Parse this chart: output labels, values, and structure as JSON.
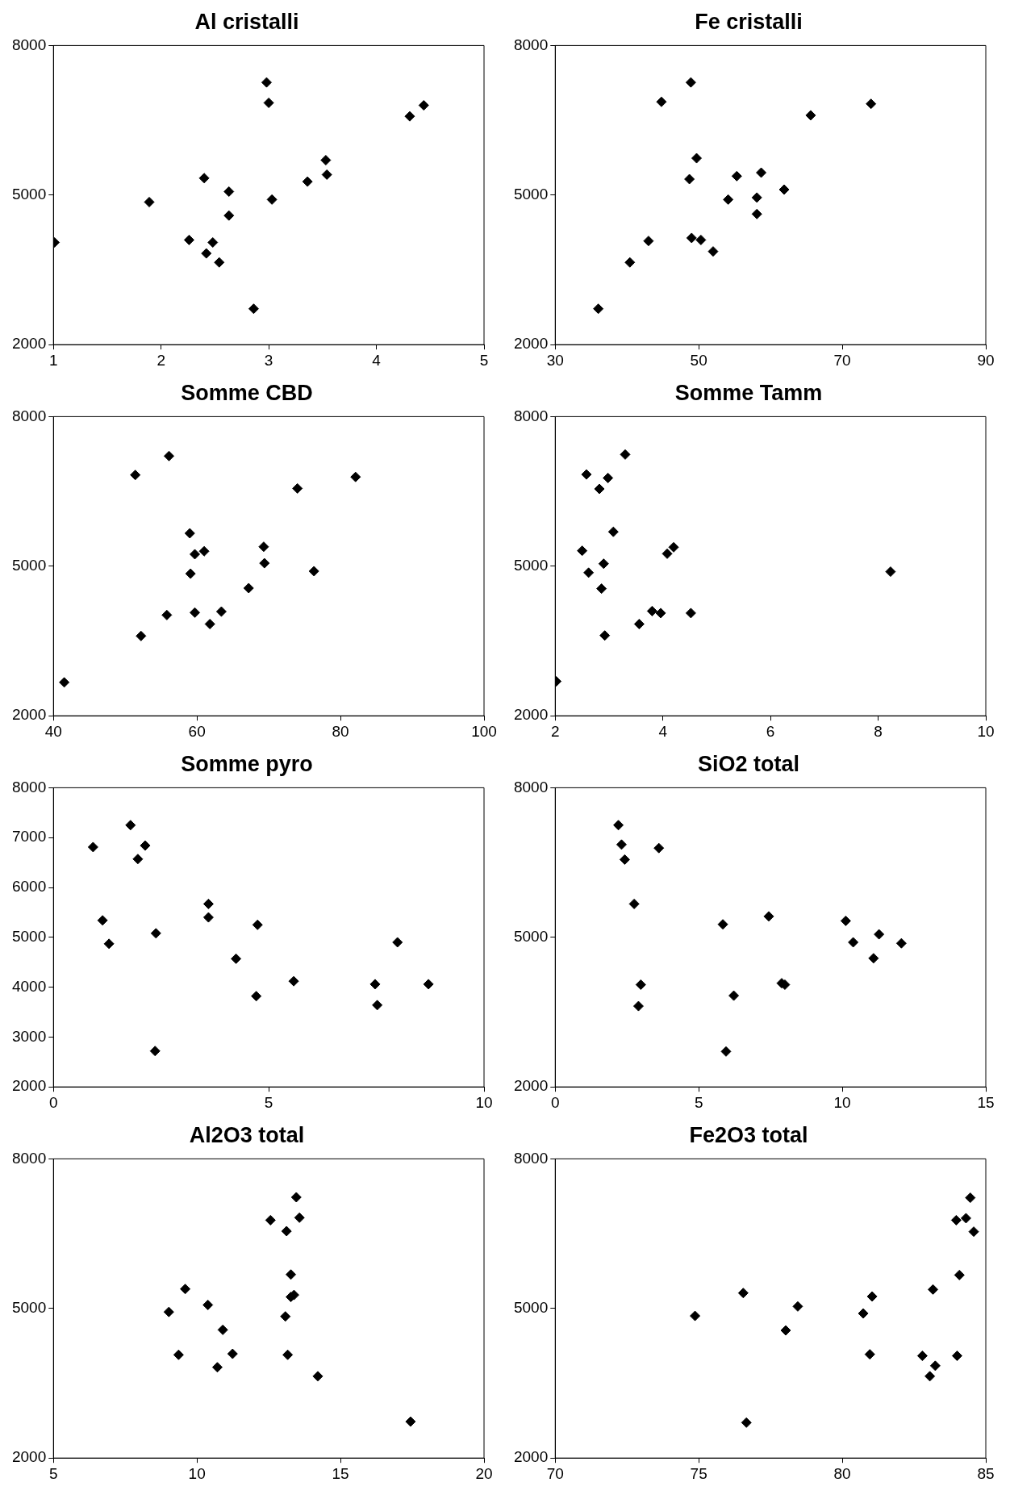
{
  "chart_data": [
    {
      "type": "scatter",
      "title": "Al cristalli",
      "color": "#000000",
      "marker": "diamond",
      "xlim": [
        1,
        5
      ],
      "xticks": [
        1,
        2,
        3,
        4,
        5
      ],
      "ylim": [
        2000,
        8000
      ],
      "yticks": [
        2000,
        5000,
        8000
      ],
      "x": [
        1.01,
        1.89,
        2.26,
        2.4,
        2.42,
        2.48,
        2.54,
        2.63,
        2.63,
        2.86,
        2.98,
        3.0,
        3.03,
        3.36,
        3.53,
        3.54,
        4.31,
        4.44
      ],
      "values": [
        4050,
        4860,
        4100,
        5340,
        3830,
        4050,
        3650,
        5070,
        4590,
        2720,
        7260,
        6850,
        4910,
        5270,
        5700,
        5410,
        6580,
        6800
      ]
    },
    {
      "type": "scatter",
      "title": "Fe cristalli",
      "color": "#000000",
      "marker": "diamond",
      "xlim": [
        30,
        90
      ],
      "xticks": [
        30,
        50,
        70,
        90
      ],
      "ylim": [
        2000,
        8000
      ],
      "yticks": [
        2000,
        5000,
        8000
      ],
      "x": [
        36,
        40.4,
        43,
        44.8,
        48.9,
        48.7,
        49.7,
        49,
        50.3,
        52,
        54.1,
        55.3,
        58.1,
        58.1,
        58.7,
        61.9,
        65.6,
        74
      ],
      "values": [
        2720,
        3650,
        4080,
        6870,
        7260,
        5320,
        5740,
        4140,
        4100,
        3870,
        4910,
        5380,
        4950,
        4620,
        5450,
        5110,
        6600,
        6830
      ]
    },
    {
      "type": "scatter",
      "title": "Somme CBD",
      "color": "#000000",
      "marker": "diamond",
      "xlim": [
        40,
        100
      ],
      "xticks": [
        40,
        60,
        80,
        100
      ],
      "ylim": [
        2000,
        8000
      ],
      "yticks": [
        2000,
        5000,
        8000
      ],
      "x": [
        41.5,
        51.4,
        52.2,
        55.8,
        56.1,
        59,
        59.1,
        59.7,
        59.7,
        61,
        61.8,
        63.4,
        67.2,
        69.3,
        69.4,
        74,
        76.3,
        82.1
      ],
      "values": [
        2670,
        6830,
        3600,
        4020,
        7210,
        5660,
        4850,
        5240,
        4070,
        5300,
        3840,
        4090,
        4560,
        5390,
        5060,
        6560,
        4900,
        6790
      ]
    },
    {
      "type": "scatter",
      "title": "Somme Tamm",
      "color": "#000000",
      "marker": "diamond",
      "xlim": [
        2,
        10
      ],
      "xticks": [
        2,
        4,
        6,
        8,
        10
      ],
      "ylim": [
        2000,
        8000
      ],
      "yticks": [
        2000,
        5000,
        8000
      ],
      "x": [
        2.02,
        2.5,
        2.58,
        2.62,
        2.82,
        2.86,
        2.9,
        2.92,
        2.98,
        3.08,
        3.3,
        3.56,
        3.8,
        3.96,
        4.08,
        4.2,
        4.52,
        8.23
      ],
      "values": [
        2690,
        5310,
        6840,
        4870,
        6550,
        4550,
        5050,
        3610,
        6770,
        5690,
        7240,
        3840,
        4100,
        4060,
        5250,
        5380,
        4060,
        4890
      ]
    },
    {
      "type": "scatter",
      "title": "Somme pyro",
      "color": "#000000",
      "marker": "diamond",
      "xlim": [
        0,
        10
      ],
      "xticks": [
        0,
        5,
        10
      ],
      "ylim": [
        2000,
        8000
      ],
      "yticks": [
        2000,
        3000,
        4000,
        5000,
        6000,
        7000,
        8000
      ],
      "x": [
        0.92,
        1.14,
        1.29,
        1.79,
        1.96,
        2.13,
        2.36,
        2.38,
        3.6,
        3.6,
        4.24,
        4.74,
        4.71,
        5.58,
        7.47,
        7.52,
        7.99,
        8.71
      ],
      "values": [
        6810,
        5340,
        4870,
        7250,
        6570,
        6840,
        2720,
        5080,
        5670,
        5400,
        4570,
        5250,
        3820,
        4120,
        4060,
        3640,
        4900,
        4060
      ]
    },
    {
      "type": "scatter",
      "title": "SiO2 total",
      "color": "#000000",
      "marker": "diamond",
      "xlim": [
        0,
        15
      ],
      "xticks": [
        0,
        5,
        10,
        15
      ],
      "ylim": [
        2000,
        8000
      ],
      "yticks": [
        2000,
        5000,
        8000
      ],
      "x": [
        2.2,
        2.31,
        2.42,
        2.75,
        2.98,
        2.9,
        3.61,
        5.84,
        5.95,
        6.22,
        7.44,
        7.89,
        8.0,
        10.12,
        10.38,
        11.09,
        11.28,
        12.06
      ],
      "values": [
        7250,
        6860,
        6560,
        5670,
        4050,
        3620,
        6790,
        5260,
        2710,
        3830,
        5420,
        4080,
        4050,
        5330,
        4900,
        4580,
        5060,
        4880
      ]
    },
    {
      "type": "scatter",
      "title": "Al2O3 total",
      "color": "#000000",
      "marker": "diamond",
      "xlim": [
        5,
        20
      ],
      "xticks": [
        5,
        10,
        15,
        20
      ],
      "ylim": [
        2000,
        8000
      ],
      "yticks": [
        2000,
        5000,
        8000
      ],
      "x": [
        9.02,
        9.36,
        9.59,
        10.38,
        10.71,
        10.9,
        11.24,
        12.56,
        13.08,
        13.12,
        13.27,
        13.27,
        13.16,
        13.38,
        13.46,
        13.57,
        14.21,
        17.44
      ],
      "values": [
        4930,
        4070,
        5390,
        5070,
        3820,
        4570,
        4090,
        6770,
        4840,
        6550,
        5680,
        5230,
        4070,
        5270,
        7230,
        6820,
        3640,
        2730
      ]
    },
    {
      "type": "scatter",
      "title": "Fe2O3 total",
      "color": "#000000",
      "marker": "diamond",
      "xlim": [
        70,
        85
      ],
      "xticks": [
        70,
        75,
        80,
        85
      ],
      "ylim": [
        2000,
        8000
      ],
      "yticks": [
        2000,
        5000,
        8000
      ],
      "x": [
        74.87,
        76.55,
        76.66,
        78.03,
        78.45,
        80.73,
        81.04,
        80.96,
        82.79,
        83.05,
        83.24,
        83.16,
        84.0,
        84.08,
        83.97,
        84.31,
        84.46,
        84.58
      ],
      "values": [
        4850,
        5310,
        2710,
        4560,
        5040,
        4900,
        5240,
        4080,
        4050,
        3640,
        3850,
        5380,
        4050,
        5670,
        6770,
        6810,
        7220,
        6540
      ]
    }
  ]
}
